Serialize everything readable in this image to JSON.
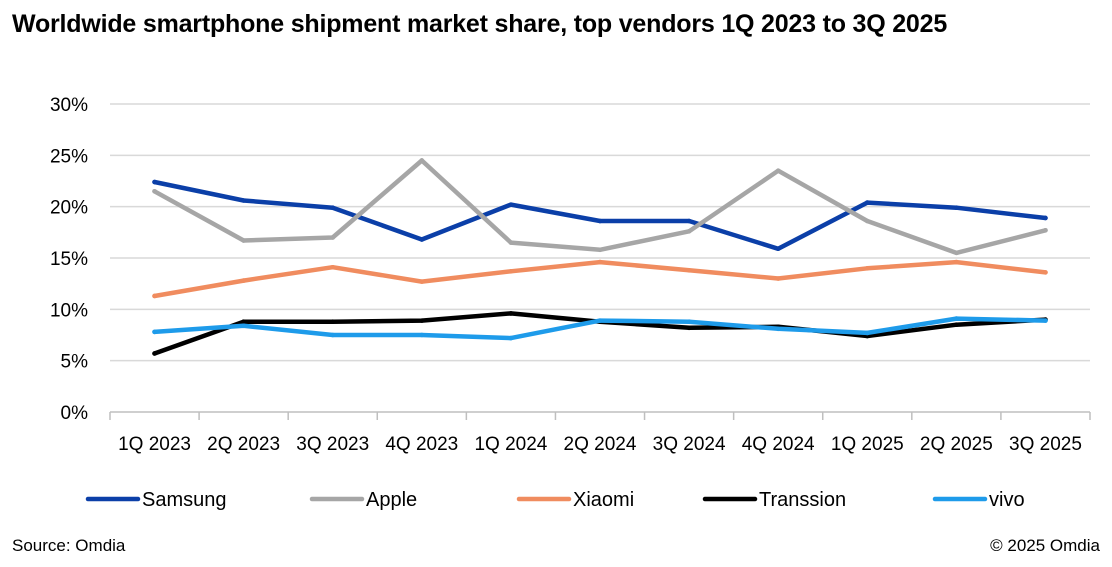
{
  "chart_data": {
    "type": "line",
    "title": "Worldwide smartphone shipment market share, top vendors 1Q 2023 to 3Q 2025",
    "categories": [
      "1Q 2023",
      "2Q 2023",
      "3Q 2023",
      "4Q 2023",
      "1Q 2024",
      "2Q 2024",
      "3Q 2024",
      "4Q 2024",
      "1Q 2025",
      "2Q 2025",
      "3Q 2025"
    ],
    "ylim": [
      0,
      30
    ],
    "yticks": [
      0,
      5,
      10,
      15,
      20,
      25,
      30
    ],
    "ytick_labels": [
      "0%",
      "5%",
      "10%",
      "15%",
      "20%",
      "25%",
      "30%"
    ],
    "grid": true,
    "legend_position": "bottom",
    "series": [
      {
        "name": "Samsung",
        "color": "#0B3FA8",
        "values": [
          22.4,
          20.6,
          19.9,
          16.8,
          20.2,
          18.6,
          18.6,
          15.9,
          20.4,
          19.9,
          18.9
        ]
      },
      {
        "name": "Apple",
        "color": "#A6A6A6",
        "values": [
          21.5,
          16.7,
          17.0,
          24.5,
          16.5,
          15.8,
          17.6,
          23.5,
          18.6,
          15.5,
          17.7
        ]
      },
      {
        "name": "Xiaomi",
        "color": "#F08C5F",
        "values": [
          11.3,
          12.8,
          14.1,
          12.7,
          13.7,
          14.6,
          13.8,
          13.0,
          14.0,
          14.6,
          13.6
        ]
      },
      {
        "name": "Transsion",
        "color": "#000000",
        "values": [
          5.7,
          8.8,
          8.8,
          8.9,
          9.6,
          8.8,
          8.2,
          8.3,
          7.4,
          8.5,
          9.0
        ]
      },
      {
        "name": "vivo",
        "color": "#1E9BEA",
        "values": [
          7.8,
          8.4,
          7.5,
          7.5,
          7.2,
          8.9,
          8.8,
          8.1,
          7.7,
          9.1,
          8.9
        ]
      }
    ]
  },
  "footer": {
    "source": "Source: Omdia",
    "copyright": "© 2025 Omdia"
  }
}
